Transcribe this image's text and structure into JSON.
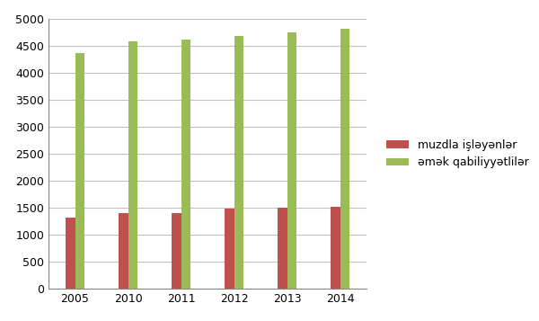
{
  "chart_data": {
    "type": "bar",
    "categories": [
      "2005",
      "2010",
      "2011",
      "2012",
      "2013",
      "2014"
    ],
    "series": [
      {
        "name": "muzdla işləyənlər",
        "color": "#c0504d",
        "values": [
          1320,
          1410,
          1400,
          1490,
          1510,
          1520
        ]
      },
      {
        "name": "əmək qabiliyyətlilər",
        "color": "#9bbb59",
        "values": [
          4380,
          4590,
          4620,
          4690,
          4760,
          4830
        ]
      }
    ],
    "ylim": [
      0,
      5000
    ],
    "yticks": [
      0,
      500,
      1000,
      1500,
      2000,
      2500,
      3000,
      3500,
      4000,
      4500,
      5000
    ],
    "grid": true,
    "legend": "center left"
  }
}
